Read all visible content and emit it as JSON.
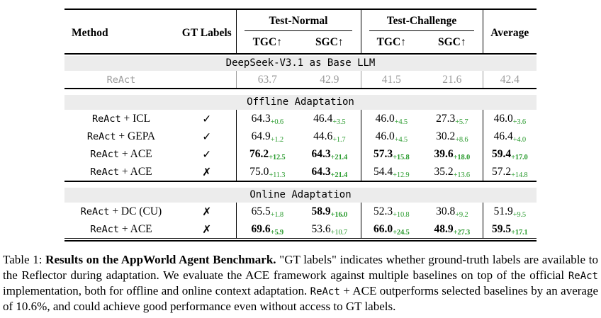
{
  "colors": {
    "green": "#2a9b2e",
    "muted_gray": "#9b9b9b",
    "section_band_bg": "#ececec"
  },
  "table": {
    "header": {
      "method": "Method",
      "gt_labels": "GT Labels",
      "group_normal": "Test-Normal",
      "group_challenge": "Test-Challenge",
      "average": "Average",
      "sub_tgc": "TGC↑",
      "sub_sgc": "SGC↑"
    },
    "gt_marks": {
      "check": "✓",
      "cross": "✗"
    },
    "sections": [
      {
        "title": "DeepSeek-V3.1 as Base LLM",
        "rows": [
          {
            "method_mono": "ReAct",
            "method_rest": "",
            "gt": "",
            "muted": true,
            "cells": [
              {
                "v": "63.7"
              },
              {
                "v": "42.9"
              },
              {
                "v": "41.5"
              },
              {
                "v": "21.6"
              },
              {
                "v": "42.4"
              }
            ]
          }
        ]
      },
      {
        "title": "Offline Adaptation",
        "rows": [
          {
            "method_mono": "ReAct",
            "method_rest": " + ICL",
            "gt": "check",
            "cells": [
              {
                "v": "64.3",
                "s": "+0.6"
              },
              {
                "v": "46.4",
                "s": "+3.5"
              },
              {
                "v": "46.0",
                "s": "+4.5"
              },
              {
                "v": "27.3",
                "s": "+5.7"
              },
              {
                "v": "46.0",
                "s": "+3.6"
              }
            ]
          },
          {
            "method_mono": "ReAct",
            "method_rest": " + GEPA",
            "gt": "check",
            "cells": [
              {
                "v": "64.9",
                "s": "+1.2"
              },
              {
                "v": "44.6",
                "s": "+1.7"
              },
              {
                "v": "46.0",
                "s": "+4.5"
              },
              {
                "v": "30.2",
                "s": "+8.6"
              },
              {
                "v": "46.4",
                "s": "+4.0"
              }
            ]
          },
          {
            "method_mono": "ReAct",
            "method_rest": " + ACE",
            "gt": "check",
            "cells": [
              {
                "v": "76.2",
                "s": "+12.5",
                "bold": true
              },
              {
                "v": "64.3",
                "s": "+21.4",
                "bold": true
              },
              {
                "v": "57.3",
                "s": "+15.8",
                "bold": true
              },
              {
                "v": "39.6",
                "s": "+18.0",
                "bold": true
              },
              {
                "v": "59.4",
                "s": "+17.0",
                "bold": true
              }
            ]
          },
          {
            "method_mono": "ReAct",
            "method_rest": " + ACE",
            "gt": "cross",
            "cells": [
              {
                "v": "75.0",
                "s": "+11.3"
              },
              {
                "v": "64.3",
                "s": "+21.4",
                "bold": true
              },
              {
                "v": "54.4",
                "s": "+12.9"
              },
              {
                "v": "35.2",
                "s": "+13.6"
              },
              {
                "v": "57.2",
                "s": "+14.8"
              }
            ]
          }
        ]
      },
      {
        "title": "Online Adaptation",
        "rows": [
          {
            "method_mono": "ReAct",
            "method_rest": " + DC (CU)",
            "gt": "cross",
            "cells": [
              {
                "v": "65.5",
                "s": "+1.8"
              },
              {
                "v": "58.9",
                "s": "+16.0",
                "bold": true
              },
              {
                "v": "52.3",
                "s": "+10.8"
              },
              {
                "v": "30.8",
                "s": "+9.2"
              },
              {
                "v": "51.9",
                "s": "+9.5"
              }
            ]
          },
          {
            "method_mono": "ReAct",
            "method_rest": " + ACE",
            "gt": "cross",
            "cells": [
              {
                "v": "69.6",
                "s": "+5.9",
                "bold": true
              },
              {
                "v": "53.6",
                "s": "+10.7"
              },
              {
                "v": "66.0",
                "s": "+24.5",
                "bold": true
              },
              {
                "v": "48.9",
                "s": "+27.3",
                "bold": true
              },
              {
                "v": "59.5",
                "s": "+17.1",
                "bold": true
              }
            ]
          }
        ]
      }
    ]
  },
  "caption": {
    "segments": [
      {
        "text": "Table 1: ",
        "style": "normal"
      },
      {
        "text": "Results on the AppWorld Agent Benchmark. ",
        "style": "bold"
      },
      {
        "text": "\"GT labels\" indicates whether ground-truth labels are available to the Reflector during adaptation. We evaluate the ACE framework against multiple baselines on top of the official ",
        "style": "normal"
      },
      {
        "text": "ReAct",
        "style": "mono"
      },
      {
        "text": " implementation, both for offline and online context adaptation. ",
        "style": "normal"
      },
      {
        "text": "ReAct",
        "style": "mono"
      },
      {
        "text": " + ACE outperforms selected baselines by an average of 10.6%, and could achieve good performance even without access to GT labels.",
        "style": "normal"
      }
    ]
  }
}
